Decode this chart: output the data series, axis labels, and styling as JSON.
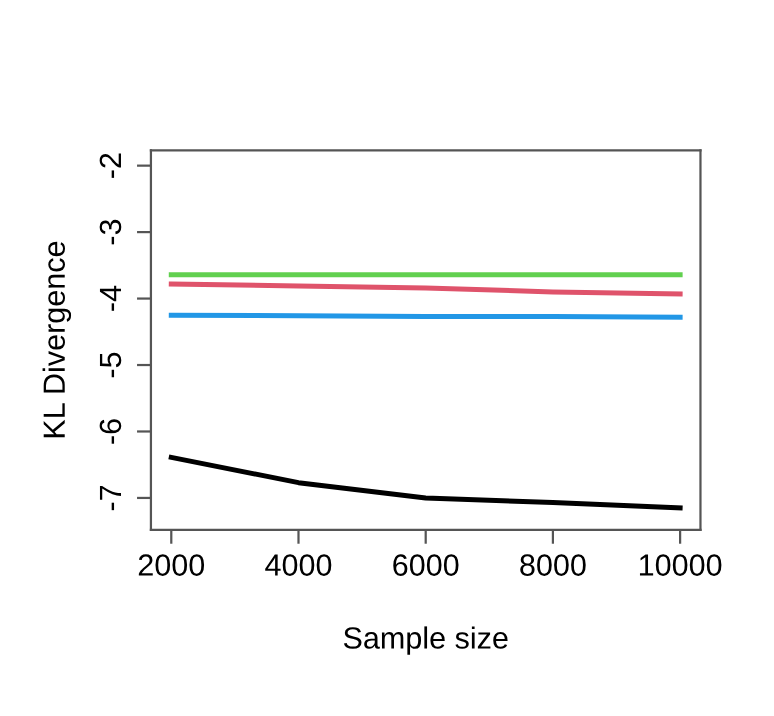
{
  "chart_data": {
    "type": "line",
    "xlabel": "Sample size",
    "ylabel": "KL Divergence",
    "x": [
      2000,
      4000,
      6000,
      8000,
      10000
    ],
    "series": [
      {
        "color": "#000000",
        "values": [
          -6.39,
          -6.77,
          -7.0,
          -7.07,
          -7.15
        ]
      },
      {
        "color": "#df536b",
        "values": [
          -3.78,
          -3.81,
          -3.84,
          -3.9,
          -3.93
        ]
      },
      {
        "color": "#61d04f",
        "values": [
          -3.64,
          -3.64,
          -3.64,
          -3.64,
          -3.64
        ]
      },
      {
        "color": "#2297e6",
        "values": [
          -4.25,
          -4.26,
          -4.27,
          -4.27,
          -4.28
        ]
      }
    ],
    "xlim": [
      1680,
      10320
    ],
    "ylim": [
      -7.48,
      -1.77
    ],
    "xticks": [
      2000,
      4000,
      6000,
      8000,
      10000
    ],
    "yticks": [
      -7,
      -6,
      -5,
      -4,
      -3,
      -2
    ],
    "grid": false,
    "marker": "none",
    "line_style": "solid"
  }
}
